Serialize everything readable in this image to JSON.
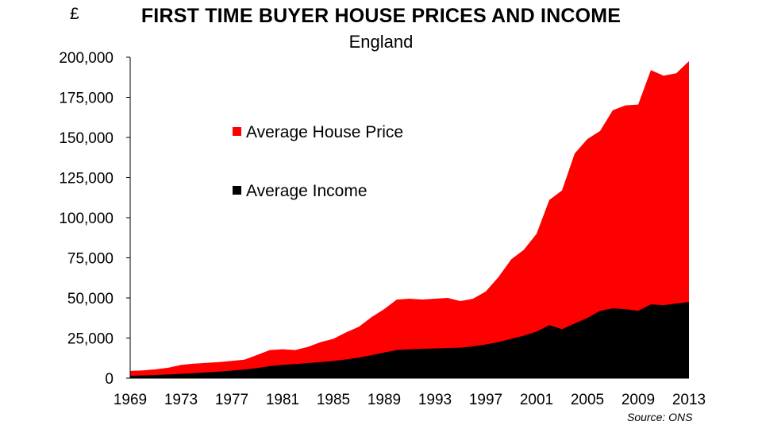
{
  "chart_data": {
    "type": "area",
    "title": "FIRST TIME BUYER HOUSE PRICES AND INCOME",
    "subtitle": "England",
    "ylabel": "£",
    "source": "Source: ONS",
    "ylim": [
      0,
      200000
    ],
    "xlim": [
      1969,
      2013
    ],
    "y_ticks": [
      "0",
      "25,000",
      "50,000",
      "75,000",
      "100,000",
      "125,000",
      "150,000",
      "175,000",
      "200,000"
    ],
    "x_ticks": [
      "1969",
      "1973",
      "1977",
      "1981",
      "1985",
      "1989",
      "1993",
      "1997",
      "2001",
      "2005",
      "2009",
      "2013"
    ],
    "grid": false,
    "legend_position": "upper-left inside plot",
    "x": [
      1969,
      1970,
      1971,
      1972,
      1973,
      1974,
      1975,
      1976,
      1977,
      1978,
      1979,
      1980,
      1981,
      1982,
      1983,
      1984,
      1985,
      1986,
      1987,
      1988,
      1989,
      1990,
      1991,
      1992,
      1993,
      1994,
      1995,
      1996,
      1997,
      1998,
      1999,
      2000,
      2001,
      2002,
      2003,
      2004,
      2005,
      2006,
      2007,
      2008,
      2009,
      2010,
      2011,
      2012,
      2013
    ],
    "series": [
      {
        "name": "Average House Price",
        "color": "#ff0000",
        "values": [
          4500,
          4800,
          5500,
          6500,
          8200,
          9000,
          9500,
          10000,
          10800,
          11500,
          14500,
          17500,
          18000,
          17500,
          19500,
          22500,
          24500,
          28500,
          32000,
          38000,
          43000,
          49000,
          49500,
          49000,
          49500,
          50000,
          48000,
          49500,
          54000,
          63000,
          74000,
          80000,
          90000,
          111000,
          117000,
          140000,
          149000,
          154000,
          167000,
          170000,
          170500,
          192000,
          188500,
          190000,
          197500
        ]
      },
      {
        "name": "Average Income",
        "color": "#000000",
        "values": [
          1500,
          1700,
          2000,
          2300,
          2700,
          3100,
          3600,
          4100,
          4700,
          5400,
          6300,
          7500,
          8300,
          8800,
          9400,
          10000,
          10700,
          11700,
          12800,
          14300,
          16000,
          17500,
          18000,
          18300,
          18500,
          18800,
          19000,
          19800,
          21000,
          22500,
          24500,
          26500,
          29000,
          33000,
          30500,
          34000,
          37500,
          42000,
          43500,
          43000,
          42000,
          46000,
          45500,
          46500,
          47500
        ]
      }
    ]
  }
}
